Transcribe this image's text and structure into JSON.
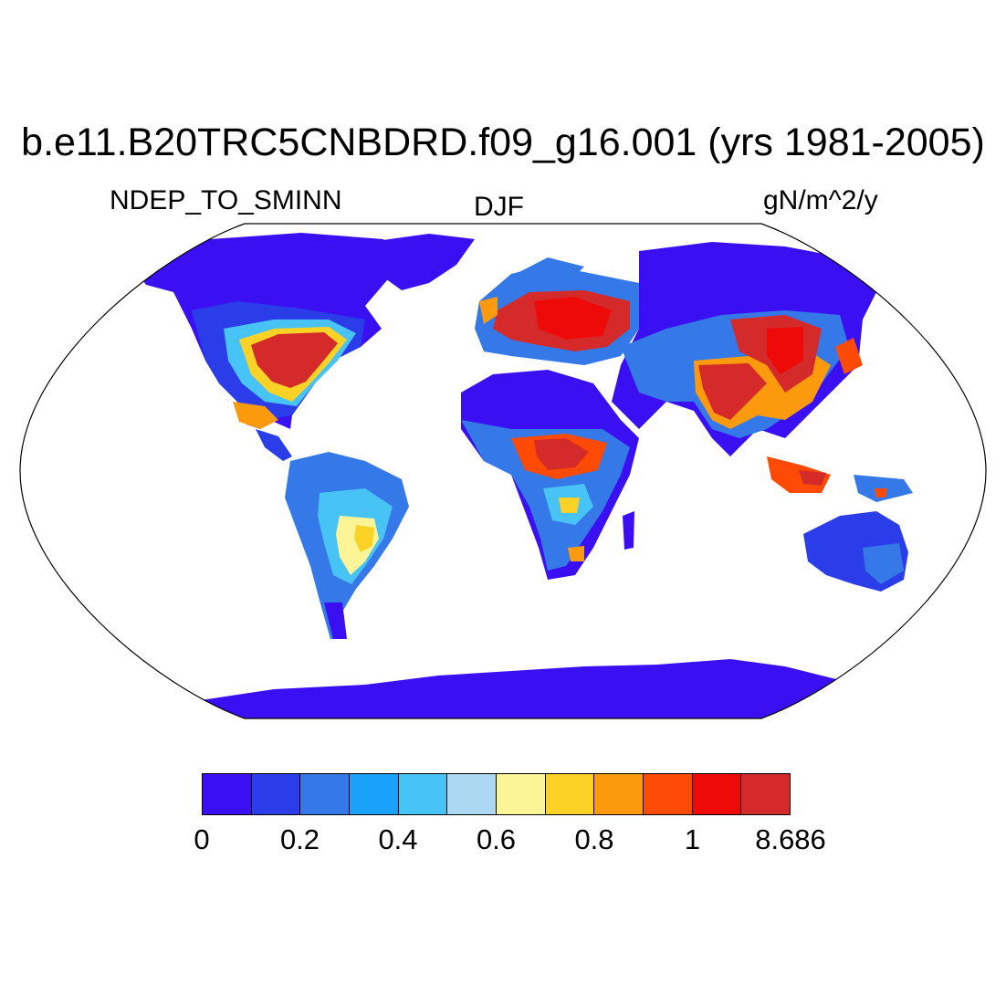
{
  "title": "b.e11.B20TRC5CNBDRD.f09_g16.001 (yrs 1981-2005)",
  "left_string": "NDEP_TO_SMINN",
  "center_string": "DJF",
  "right_string": "gN/m^2/y",
  "colorbar": {
    "colors": [
      "#3a10f2",
      "#2a3de9",
      "#3578e8",
      "#1aa1f9",
      "#48c3f5",
      "#acd9f1",
      "#fbf598",
      "#fdd227",
      "#fc9a0e",
      "#fd4a04",
      "#ee0a09",
      "#d52a2a"
    ],
    "labels": [
      {
        "text": "0",
        "boundary": 0
      },
      {
        "text": "0.2",
        "boundary": 2
      },
      {
        "text": "0.4",
        "boundary": 4
      },
      {
        "text": "0.6",
        "boundary": 6
      },
      {
        "text": "0.8",
        "boundary": 8
      },
      {
        "text": "1",
        "boundary": 10
      },
      {
        "text": "8.686",
        "boundary": 12
      }
    ]
  }
}
